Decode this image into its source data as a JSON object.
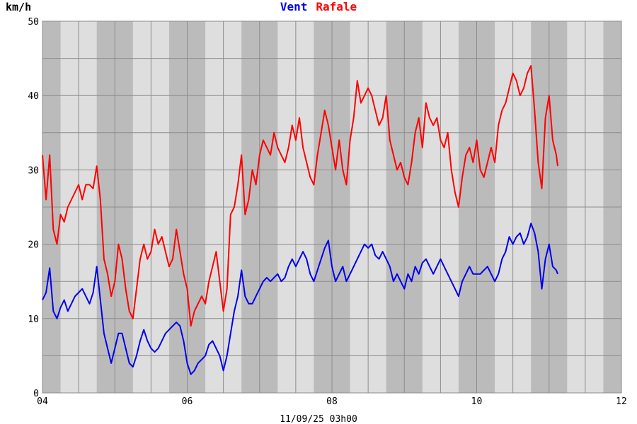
{
  "chart_data": {
    "type": "line",
    "unit_label": "km/h",
    "footer": "11/09/25 03h00",
    "xlim": [
      4,
      12
    ],
    "ylim": [
      0,
      50
    ],
    "x_ticks": [
      {
        "value": 4,
        "label": "04"
      },
      {
        "value": 6,
        "label": "06"
      },
      {
        "value": 8,
        "label": "08"
      },
      {
        "value": 10,
        "label": "10"
      },
      {
        "value": 12,
        "label": "12"
      }
    ],
    "y_ticks": [
      {
        "value": 0,
        "label": "0"
      },
      {
        "value": 10,
        "label": "10"
      },
      {
        "value": 20,
        "label": "20"
      },
      {
        "value": 30,
        "label": "30"
      },
      {
        "value": 40,
        "label": "40"
      },
      {
        "value": 50,
        "label": "50"
      }
    ],
    "night_bands": [
      [
        4.0,
        4.25
      ],
      [
        4.75,
        5.25
      ],
      [
        5.75,
        6.25
      ],
      [
        6.75,
        7.25
      ],
      [
        7.75,
        8.25
      ],
      [
        8.75,
        9.25
      ],
      [
        9.75,
        10.25
      ],
      [
        10.75,
        11.25
      ],
      [
        11.75,
        12.0
      ]
    ],
    "grid": true,
    "colors": {
      "vent": "#0000ee",
      "rafale": "#ff0000",
      "day_band": "#dedede",
      "night_band": "#bbbbbb",
      "grid": "#8c8c8c"
    },
    "series": [
      {
        "name": "Vent",
        "color": "#0000ee",
        "points": [
          [
            4.0,
            12.5
          ],
          [
            4.05,
            13.5
          ],
          [
            4.1,
            16.8
          ],
          [
            4.15,
            11
          ],
          [
            4.2,
            10
          ],
          [
            4.25,
            11.5
          ],
          [
            4.3,
            12.5
          ],
          [
            4.35,
            11
          ],
          [
            4.4,
            12
          ],
          [
            4.45,
            13
          ],
          [
            4.5,
            13.5
          ],
          [
            4.55,
            14
          ],
          [
            4.6,
            13
          ],
          [
            4.65,
            12
          ],
          [
            4.7,
            13.5
          ],
          [
            4.75,
            17
          ],
          [
            4.8,
            12.5
          ],
          [
            4.85,
            8
          ],
          [
            4.9,
            6
          ],
          [
            4.95,
            4
          ],
          [
            5.0,
            6
          ],
          [
            5.05,
            8
          ],
          [
            5.1,
            8
          ],
          [
            5.15,
            6
          ],
          [
            5.2,
            4
          ],
          [
            5.25,
            3.5
          ],
          [
            5.3,
            5
          ],
          [
            5.35,
            7
          ],
          [
            5.4,
            8.5
          ],
          [
            5.45,
            7
          ],
          [
            5.5,
            6
          ],
          [
            5.55,
            5.5
          ],
          [
            5.6,
            6
          ],
          [
            5.65,
            7
          ],
          [
            5.7,
            8
          ],
          [
            5.75,
            8.5
          ],
          [
            5.8,
            9
          ],
          [
            5.85,
            9.5
          ],
          [
            5.9,
            9
          ],
          [
            5.95,
            7
          ],
          [
            6.0,
            4
          ],
          [
            6.05,
            2.5
          ],
          [
            6.1,
            3
          ],
          [
            6.15,
            4
          ],
          [
            6.2,
            4.5
          ],
          [
            6.25,
            5
          ],
          [
            6.3,
            6.5
          ],
          [
            6.35,
            7
          ],
          [
            6.4,
            6
          ],
          [
            6.45,
            5
          ],
          [
            6.5,
            3
          ],
          [
            6.55,
            5
          ],
          [
            6.6,
            8
          ],
          [
            6.65,
            11
          ],
          [
            6.7,
            13
          ],
          [
            6.75,
            16.5
          ],
          [
            6.8,
            13
          ],
          [
            6.85,
            12
          ],
          [
            6.9,
            12
          ],
          [
            6.95,
            13
          ],
          [
            7.0,
            14
          ],
          [
            7.05,
            15
          ],
          [
            7.1,
            15.5
          ],
          [
            7.15,
            15
          ],
          [
            7.2,
            15.5
          ],
          [
            7.25,
            16
          ],
          [
            7.3,
            15
          ],
          [
            7.35,
            15.5
          ],
          [
            7.4,
            17
          ],
          [
            7.45,
            18
          ],
          [
            7.5,
            17
          ],
          [
            7.55,
            18
          ],
          [
            7.6,
            19
          ],
          [
            7.65,
            18
          ],
          [
            7.7,
            16
          ],
          [
            7.75,
            15
          ],
          [
            7.8,
            16.5
          ],
          [
            7.85,
            18
          ],
          [
            7.9,
            19.5
          ],
          [
            7.95,
            20.5
          ],
          [
            8.0,
            17
          ],
          [
            8.05,
            15
          ],
          [
            8.1,
            16
          ],
          [
            8.15,
            17
          ],
          [
            8.2,
            15
          ],
          [
            8.25,
            16
          ],
          [
            8.3,
            17
          ],
          [
            8.35,
            18
          ],
          [
            8.4,
            19
          ],
          [
            8.45,
            20
          ],
          [
            8.5,
            19.5
          ],
          [
            8.55,
            20
          ],
          [
            8.6,
            18.5
          ],
          [
            8.65,
            18
          ],
          [
            8.7,
            19
          ],
          [
            8.75,
            18
          ],
          [
            8.8,
            17
          ],
          [
            8.85,
            15
          ],
          [
            8.9,
            16
          ],
          [
            8.95,
            15
          ],
          [
            9.0,
            14
          ],
          [
            9.05,
            16
          ],
          [
            9.1,
            15
          ],
          [
            9.15,
            17
          ],
          [
            9.2,
            16
          ],
          [
            9.25,
            17.5
          ],
          [
            9.3,
            18
          ],
          [
            9.35,
            17
          ],
          [
            9.4,
            16
          ],
          [
            9.45,
            17
          ],
          [
            9.5,
            18
          ],
          [
            9.55,
            17
          ],
          [
            9.6,
            16
          ],
          [
            9.65,
            15
          ],
          [
            9.7,
            14
          ],
          [
            9.75,
            13
          ],
          [
            9.8,
            15
          ],
          [
            9.85,
            16
          ],
          [
            9.9,
            17
          ],
          [
            9.95,
            16
          ],
          [
            10.0,
            16
          ],
          [
            10.05,
            16
          ],
          [
            10.1,
            16.5
          ],
          [
            10.15,
            17
          ],
          [
            10.2,
            16
          ],
          [
            10.25,
            15
          ],
          [
            10.3,
            16
          ],
          [
            10.35,
            18
          ],
          [
            10.4,
            19
          ],
          [
            10.45,
            21
          ],
          [
            10.5,
            20
          ],
          [
            10.55,
            21
          ],
          [
            10.6,
            21.5
          ],
          [
            10.65,
            20
          ],
          [
            10.7,
            21
          ],
          [
            10.75,
            22.8
          ],
          [
            10.8,
            21.5
          ],
          [
            10.85,
            19
          ],
          [
            10.9,
            14
          ],
          [
            10.95,
            18
          ],
          [
            11.0,
            20
          ],
          [
            11.05,
            17
          ],
          [
            11.1,
            16.5
          ],
          [
            11.12,
            16
          ]
        ]
      },
      {
        "name": "Rafale",
        "color": "#ff0000",
        "points": [
          [
            4.0,
            32
          ],
          [
            4.05,
            26
          ],
          [
            4.1,
            32
          ],
          [
            4.15,
            22
          ],
          [
            4.2,
            20
          ],
          [
            4.25,
            24
          ],
          [
            4.3,
            23
          ],
          [
            4.35,
            25
          ],
          [
            4.4,
            26
          ],
          [
            4.45,
            27
          ],
          [
            4.5,
            28
          ],
          [
            4.55,
            26
          ],
          [
            4.6,
            28
          ],
          [
            4.65,
            28
          ],
          [
            4.7,
            27.5
          ],
          [
            4.75,
            30.5
          ],
          [
            4.8,
            26
          ],
          [
            4.85,
            18
          ],
          [
            4.9,
            16
          ],
          [
            4.95,
            13
          ],
          [
            5.0,
            15
          ],
          [
            5.05,
            20
          ],
          [
            5.1,
            18
          ],
          [
            5.15,
            14
          ],
          [
            5.2,
            11
          ],
          [
            5.25,
            10
          ],
          [
            5.3,
            14
          ],
          [
            5.35,
            18
          ],
          [
            5.4,
            20
          ],
          [
            5.45,
            18
          ],
          [
            5.5,
            19
          ],
          [
            5.55,
            22
          ],
          [
            5.6,
            20
          ],
          [
            5.65,
            21
          ],
          [
            5.7,
            19
          ],
          [
            5.75,
            17
          ],
          [
            5.8,
            18
          ],
          [
            5.85,
            22
          ],
          [
            5.9,
            19
          ],
          [
            5.95,
            16
          ],
          [
            6.0,
            14
          ],
          [
            6.05,
            9
          ],
          [
            6.1,
            11
          ],
          [
            6.15,
            12
          ],
          [
            6.2,
            13
          ],
          [
            6.25,
            12
          ],
          [
            6.3,
            15
          ],
          [
            6.35,
            17
          ],
          [
            6.4,
            19
          ],
          [
            6.45,
            15
          ],
          [
            6.5,
            11
          ],
          [
            6.55,
            14
          ],
          [
            6.6,
            24
          ],
          [
            6.65,
            25
          ],
          [
            6.7,
            28
          ],
          [
            6.75,
            32
          ],
          [
            6.8,
            24
          ],
          [
            6.85,
            26
          ],
          [
            6.9,
            30
          ],
          [
            6.95,
            28
          ],
          [
            7.0,
            32
          ],
          [
            7.05,
            34
          ],
          [
            7.1,
            33
          ],
          [
            7.15,
            32
          ],
          [
            7.2,
            35
          ],
          [
            7.25,
            33
          ],
          [
            7.3,
            32
          ],
          [
            7.35,
            31
          ],
          [
            7.4,
            33
          ],
          [
            7.45,
            36
          ],
          [
            7.5,
            34
          ],
          [
            7.55,
            37
          ],
          [
            7.6,
            33
          ],
          [
            7.65,
            31
          ],
          [
            7.7,
            29
          ],
          [
            7.75,
            28
          ],
          [
            7.8,
            32
          ],
          [
            7.85,
            35
          ],
          [
            7.9,
            38
          ],
          [
            7.95,
            36
          ],
          [
            8.0,
            33
          ],
          [
            8.05,
            30
          ],
          [
            8.1,
            34
          ],
          [
            8.15,
            30
          ],
          [
            8.2,
            28
          ],
          [
            8.25,
            34
          ],
          [
            8.3,
            37
          ],
          [
            8.35,
            42
          ],
          [
            8.4,
            39
          ],
          [
            8.45,
            40
          ],
          [
            8.5,
            41
          ],
          [
            8.55,
            40
          ],
          [
            8.6,
            38
          ],
          [
            8.65,
            36
          ],
          [
            8.7,
            37
          ],
          [
            8.75,
            40
          ],
          [
            8.8,
            34
          ],
          [
            8.85,
            32
          ],
          [
            8.9,
            30
          ],
          [
            8.95,
            31
          ],
          [
            9.0,
            29
          ],
          [
            9.05,
            28
          ],
          [
            9.1,
            31
          ],
          [
            9.15,
            35
          ],
          [
            9.2,
            37
          ],
          [
            9.25,
            33
          ],
          [
            9.3,
            39
          ],
          [
            9.35,
            37
          ],
          [
            9.4,
            36
          ],
          [
            9.45,
            37
          ],
          [
            9.5,
            34
          ],
          [
            9.55,
            33
          ],
          [
            9.6,
            35
          ],
          [
            9.65,
            30
          ],
          [
            9.7,
            27
          ],
          [
            9.75,
            25
          ],
          [
            9.8,
            29
          ],
          [
            9.85,
            32
          ],
          [
            9.9,
            33
          ],
          [
            9.95,
            31
          ],
          [
            10.0,
            34
          ],
          [
            10.05,
            30
          ],
          [
            10.1,
            29
          ],
          [
            10.15,
            31
          ],
          [
            10.2,
            33
          ],
          [
            10.25,
            31
          ],
          [
            10.3,
            36
          ],
          [
            10.35,
            38
          ],
          [
            10.4,
            39
          ],
          [
            10.45,
            41
          ],
          [
            10.5,
            43
          ],
          [
            10.55,
            42
          ],
          [
            10.6,
            40
          ],
          [
            10.65,
            41
          ],
          [
            10.7,
            43
          ],
          [
            10.75,
            44
          ],
          [
            10.8,
            38
          ],
          [
            10.85,
            31
          ],
          [
            10.9,
            27.5
          ],
          [
            10.95,
            37
          ],
          [
            11.0,
            40
          ],
          [
            11.05,
            34
          ],
          [
            11.1,
            32
          ],
          [
            11.12,
            30.5
          ]
        ]
      }
    ]
  }
}
